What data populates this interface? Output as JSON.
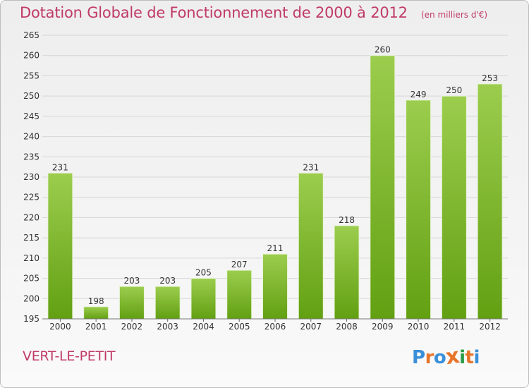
{
  "chart_data": {
    "type": "bar",
    "title": "Dotation Globale de Fonctionnement de 2000 à 2012",
    "subtitle": "(en milliers d'€)",
    "categories": [
      "2000",
      "2001",
      "2002",
      "2003",
      "2004",
      "2005",
      "2006",
      "2007",
      "2008",
      "2009",
      "2010",
      "2011",
      "2012"
    ],
    "values": [
      231,
      198,
      203,
      203,
      205,
      207,
      211,
      231,
      218,
      260,
      249,
      250,
      253
    ],
    "ylim": [
      195,
      265
    ],
    "yticks": [
      195,
      200,
      205,
      210,
      215,
      220,
      225,
      230,
      235,
      240,
      245,
      250,
      255,
      260,
      265
    ],
    "grid": true,
    "bar_color_top": "#9ccd4e",
    "bar_color_bottom": "#62a012"
  },
  "commune": "VERT-LE-PETIT",
  "logo": {
    "text": "Proxiti",
    "colors": [
      "#3a8fd8",
      "#e8742a",
      "#3a8fd8",
      "#e8742a",
      "#2a9a45",
      "#e8742a",
      "#3a8fd8"
    ]
  },
  "colors": {
    "accent": "#c03a68",
    "grid": "#d6d6d6",
    "axis_text": "#333333"
  }
}
